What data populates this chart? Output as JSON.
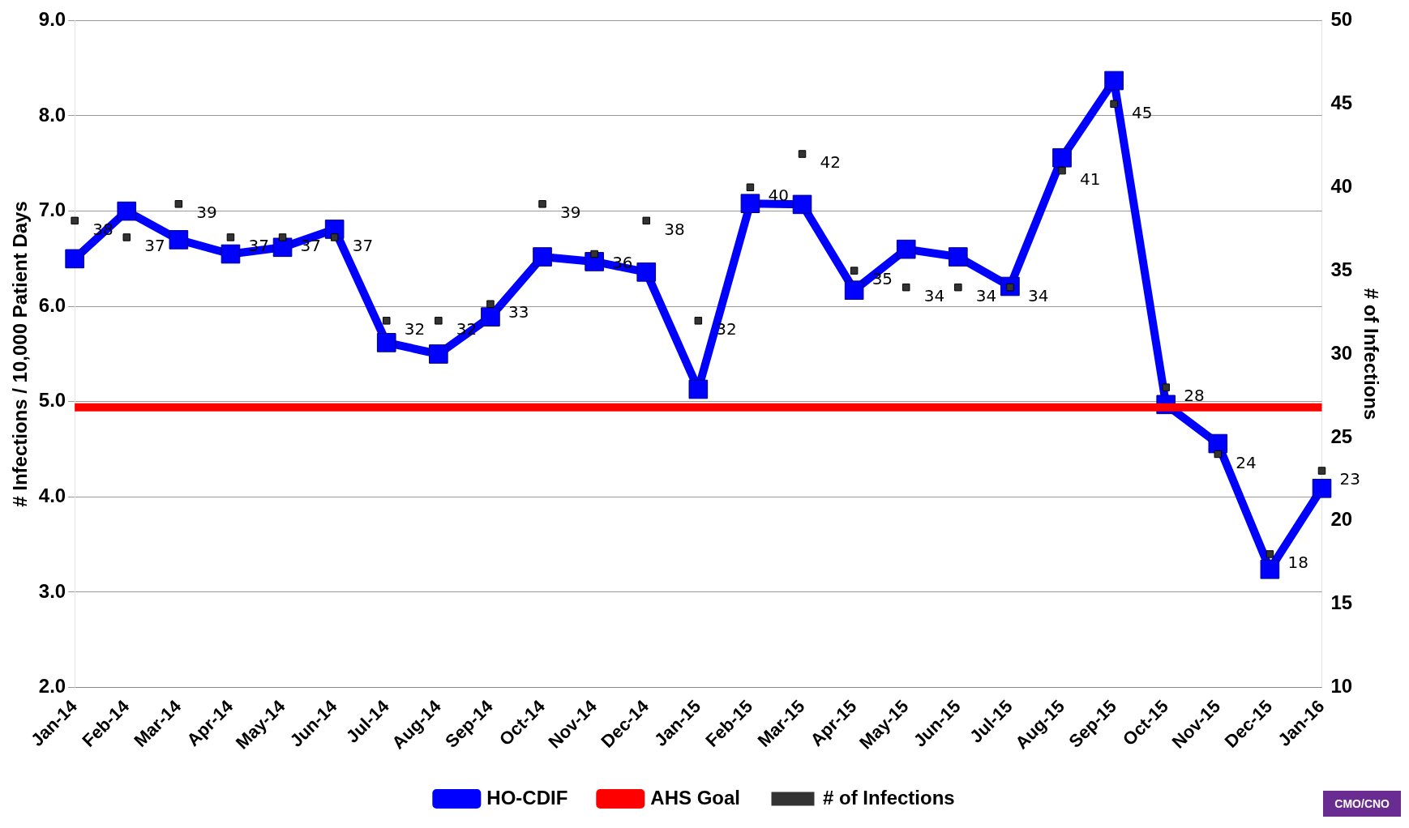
{
  "chart_data": {
    "type": "line",
    "ylabel": "# Infections / 10,000 Patient Days",
    "y2label": "# of Infections",
    "categories": [
      "Jan-14",
      "Feb-14",
      "Mar-14",
      "Apr-14",
      "May-14",
      "Jun-14",
      "Jul-14",
      "Aug-14",
      "Sep-14",
      "Oct-14",
      "Nov-14",
      "Dec-14",
      "Jan-15",
      "Feb-15",
      "Mar-15",
      "Apr-15",
      "May-15",
      "Jun-15",
      "Jul-15",
      "Aug-15",
      "Sep-15",
      "Oct-15",
      "Nov-15",
      "Dec-15",
      "Jan-16"
    ],
    "series": [
      {
        "name": "HO-CDIF",
        "color": "#0000ff",
        "marker": "square",
        "values": [
          6.5,
          7.0,
          6.7,
          6.55,
          6.62,
          6.81,
          5.62,
          5.5,
          5.89,
          6.52,
          6.47,
          6.36,
          5.13,
          7.08,
          7.07,
          6.17,
          6.6,
          6.52,
          6.21,
          7.56,
          8.37,
          4.97,
          4.56,
          3.24,
          4.09
        ]
      },
      {
        "name": "AHS Goal",
        "color": "#ff0000",
        "marker": "none",
        "values": [
          4.94,
          4.94,
          4.94,
          4.94,
          4.94,
          4.94,
          4.94,
          4.94,
          4.94,
          4.94,
          4.94,
          4.94,
          4.94,
          4.94,
          4.94,
          4.94,
          4.94,
          4.94,
          4.94,
          4.94,
          4.94,
          4.94,
          4.94,
          4.94,
          4.94
        ]
      },
      {
        "name": "# of Infections",
        "type": "scatter",
        "axis": "y2",
        "color": "#333333",
        "values": [
          38,
          37,
          39,
          37,
          37,
          37,
          32,
          32,
          33,
          39,
          36,
          38,
          32,
          40,
          42,
          35,
          34,
          34,
          34,
          41,
          45,
          28,
          24,
          18,
          23
        ],
        "value_labels": [
          "38",
          "37",
          "39",
          "37",
          "37",
          "37",
          "32",
          "32",
          "33",
          "39",
          "36",
          "38",
          "32",
          "40",
          "42",
          "35",
          "34",
          "34",
          "34",
          "41",
          "45",
          "28",
          "24",
          "18",
          "23"
        ]
      }
    ],
    "ylim": [
      2,
      9
    ],
    "yticks": [
      {
        "value": 2,
        "label": "2.0"
      },
      {
        "value": 3,
        "label": "3.0"
      },
      {
        "value": 4,
        "label": "4.0"
      },
      {
        "value": 5,
        "label": "5.0"
      },
      {
        "value": 6,
        "label": "6.0"
      },
      {
        "value": 7,
        "label": "7.0"
      },
      {
        "value": 8,
        "label": "8.0"
      },
      {
        "value": 9,
        "label": "9.0"
      }
    ],
    "y2lim": [
      10,
      50
    ],
    "y2ticks": [
      10,
      15,
      20,
      25,
      30,
      35,
      40,
      45,
      50
    ],
    "grid": "y",
    "legend": "bottom",
    "annotations": [
      "CMO/CNO"
    ]
  }
}
